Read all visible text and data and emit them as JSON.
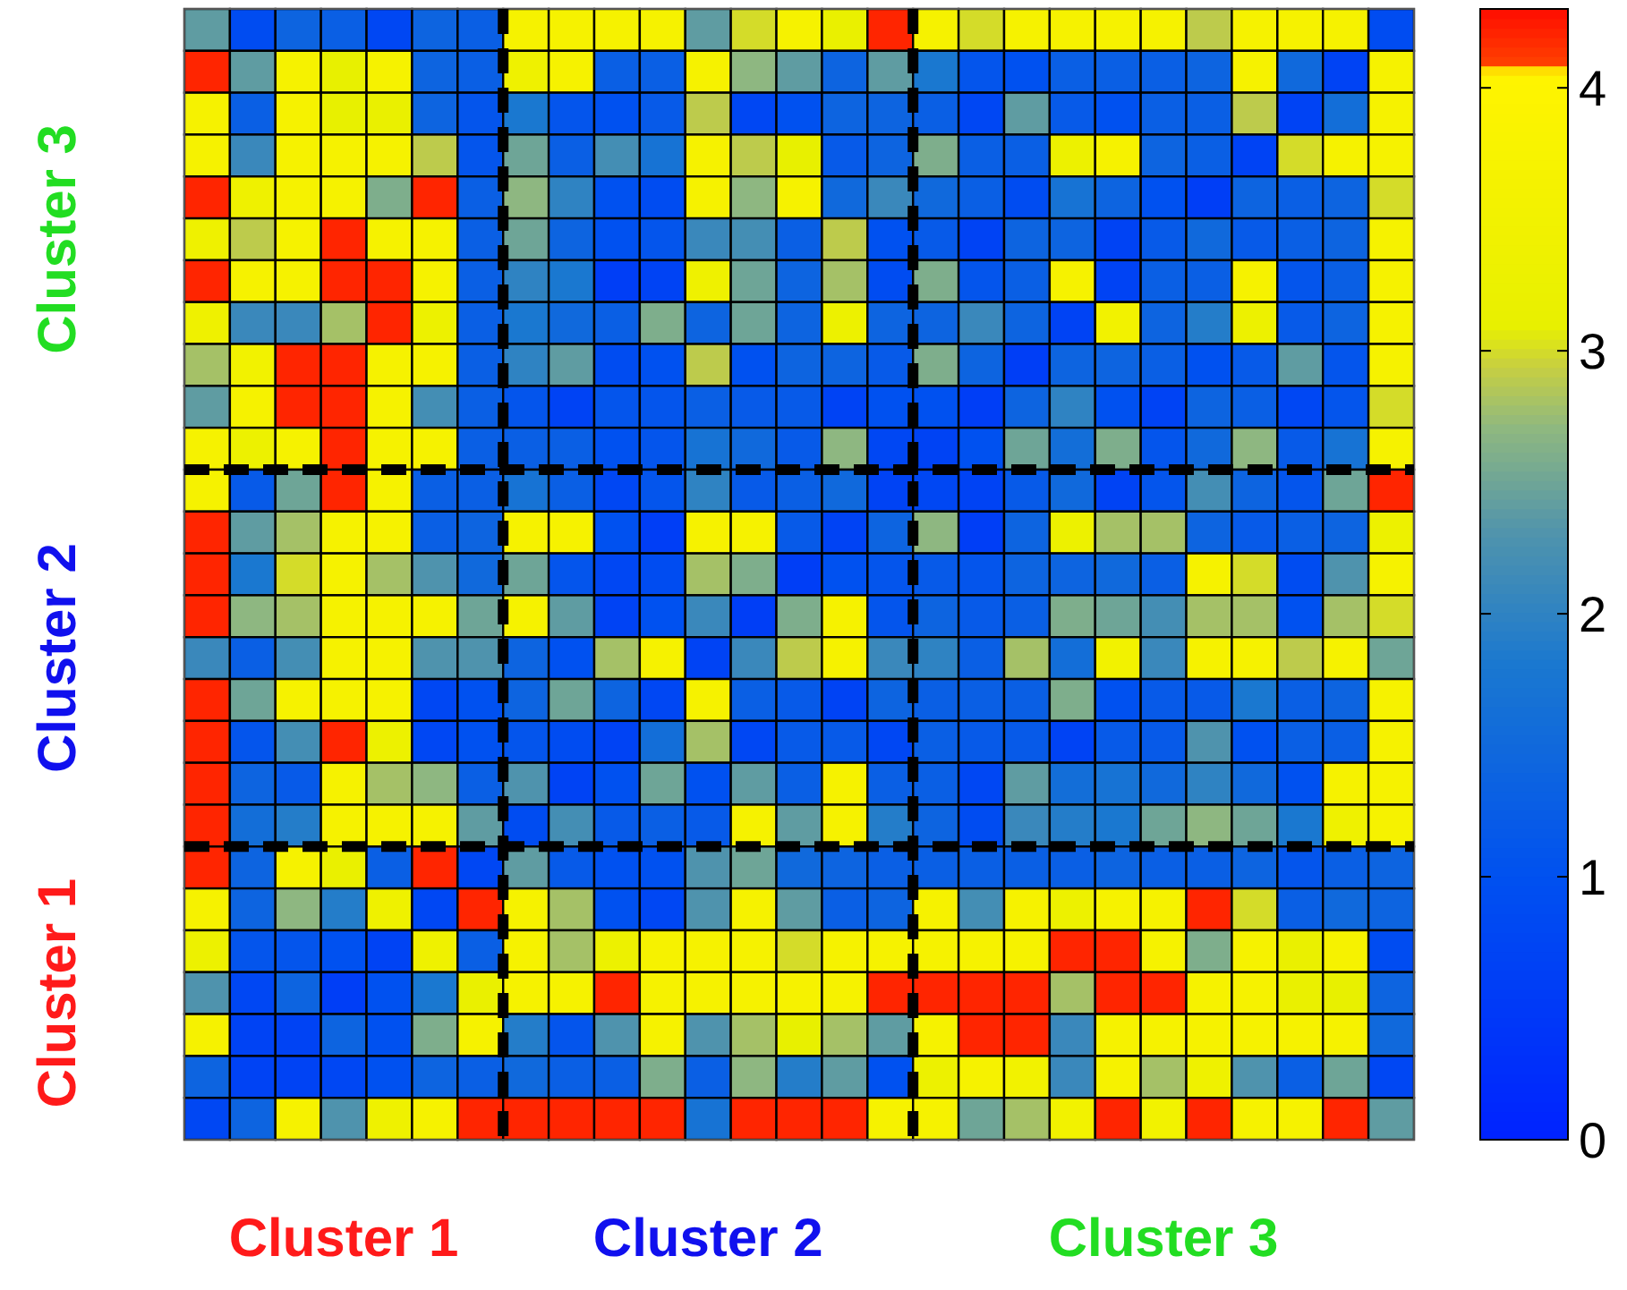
{
  "chart_data": {
    "type": "heatmap",
    "categories": [
      null,
      null,
      null,
      "Cluster 1",
      null,
      null,
      null,
      null,
      null,
      null,
      null,
      "Cluster 2",
      null,
      null,
      null,
      null,
      null,
      null,
      null,
      null,
      null,
      "Cluster 3",
      null,
      null,
      null,
      null,
      null
    ],
    "y_categories": [
      null,
      null,
      null,
      null,
      null,
      "Cluster 3",
      null,
      null,
      null,
      null,
      null,
      null,
      null,
      null,
      null,
      "Cluster 2",
      null,
      null,
      null,
      null,
      null,
      null,
      null,
      "Cluster 1",
      null,
      null,
      null
    ],
    "clim": [
      0,
      4.3
    ],
    "cticks": [
      0,
      1,
      2,
      3,
      4
    ],
    "cells": [
      [
        2.4,
        0.9,
        1.4,
        1.3,
        0.8,
        1.4,
        1.3,
        3.7,
        3.7,
        3.7,
        3.7,
        2.4,
        3.0,
        3.7,
        3.2,
        4.2,
        3.7,
        3.0,
        3.7,
        3.7,
        3.7,
        3.7,
        2.9,
        3.7,
        3.7,
        3.7,
        0.9
      ],
      [
        4.2,
        2.4,
        3.7,
        3.1,
        3.7,
        1.4,
        1.3,
        3.4,
        3.7,
        1.3,
        1.3,
        3.7,
        2.7,
        2.4,
        1.4,
        2.4,
        1.8,
        1.1,
        1.0,
        1.3,
        1.3,
        1.3,
        1.4,
        3.7,
        1.5,
        0.7,
        3.7
      ],
      [
        3.7,
        1.3,
        3.7,
        3.1,
        3.2,
        1.4,
        1.1,
        1.8,
        1.1,
        1.0,
        1.2,
        2.9,
        0.8,
        1.0,
        1.4,
        1.4,
        1.3,
        0.8,
        2.4,
        1.2,
        1.0,
        1.3,
        1.3,
        2.9,
        0.7,
        1.6,
        3.7
      ],
      [
        3.7,
        2.1,
        3.7,
        3.7,
        3.7,
        2.9,
        1.1,
        2.5,
        1.3,
        2.2,
        1.7,
        3.7,
        2.9,
        3.1,
        1.2,
        1.4,
        2.6,
        1.3,
        1.3,
        3.3,
        3.7,
        1.4,
        1.3,
        0.7,
        3.0,
        3.7,
        3.7
      ],
      [
        4.2,
        3.4,
        3.7,
        3.7,
        2.6,
        4.2,
        1.3,
        2.7,
        2.0,
        1.0,
        0.9,
        3.7,
        2.7,
        3.7,
        1.5,
        2.1,
        1.5,
        1.3,
        0.9,
        1.7,
        1.4,
        1.0,
        0.6,
        1.4,
        1.3,
        1.4,
        3.0
      ],
      [
        3.4,
        2.9,
        3.7,
        4.2,
        3.7,
        3.7,
        1.3,
        2.5,
        1.4,
        1.0,
        1.1,
        2.1,
        2.2,
        1.3,
        2.9,
        1.0,
        1.2,
        0.7,
        1.4,
        1.4,
        0.7,
        1.2,
        1.5,
        1.2,
        1.3,
        1.4,
        3.7
      ],
      [
        4.2,
        3.7,
        3.7,
        4.2,
        4.2,
        3.7,
        1.3,
        2.0,
        1.8,
        0.6,
        0.7,
        3.4,
        2.5,
        1.4,
        2.8,
        0.9,
        2.6,
        1.1,
        1.3,
        3.7,
        0.7,
        1.3,
        1.3,
        3.7,
        1.1,
        1.3,
        3.7
      ],
      [
        3.4,
        2.1,
        2.1,
        2.8,
        4.2,
        3.3,
        1.3,
        1.8,
        1.5,
        1.3,
        2.6,
        1.4,
        2.5,
        1.4,
        3.3,
        1.4,
        1.4,
        2.1,
        1.4,
        0.7,
        3.5,
        1.4,
        1.9,
        3.3,
        1.2,
        1.4,
        3.7
      ],
      [
        2.8,
        3.5,
        4.2,
        4.2,
        3.7,
        3.7,
        1.3,
        2.0,
        2.4,
        0.9,
        1.0,
        2.9,
        1.0,
        1.4,
        1.4,
        1.2,
        2.6,
        1.4,
        0.6,
        1.4,
        1.4,
        1.3,
        1.0,
        1.2,
        2.4,
        1.1,
        3.7
      ],
      [
        2.4,
        3.7,
        4.2,
        4.2,
        3.7,
        2.2,
        1.3,
        1.1,
        0.7,
        1.1,
        1.1,
        1.3,
        1.2,
        1.2,
        0.7,
        1.0,
        1.0,
        0.6,
        1.4,
        2.0,
        1.0,
        0.7,
        1.4,
        1.3,
        0.8,
        1.1,
        3.0
      ],
      [
        3.7,
        3.3,
        3.7,
        4.2,
        3.7,
        3.7,
        1.3,
        1.3,
        1.3,
        1.0,
        1.1,
        1.7,
        1.5,
        1.2,
        2.7,
        0.8,
        0.7,
        1.0,
        2.5,
        1.6,
        2.6,
        1.1,
        1.5,
        2.7,
        1.2,
        1.7,
        3.7
      ],
      [
        3.7,
        1.2,
        2.5,
        4.2,
        3.7,
        1.3,
        1.3,
        1.7,
        1.3,
        0.8,
        1.1,
        2.0,
        1.2,
        1.3,
        1.5,
        0.7,
        0.8,
        0.7,
        1.2,
        1.5,
        0.7,
        1.1,
        2.2,
        1.4,
        1.1,
        2.5,
        4.2
      ],
      [
        4.2,
        2.4,
        2.8,
        3.7,
        3.7,
        1.3,
        1.4,
        3.7,
        3.7,
        1.0,
        0.6,
        3.7,
        3.7,
        1.2,
        0.7,
        1.4,
        2.7,
        0.6,
        1.4,
        3.3,
        2.8,
        2.8,
        1.4,
        1.2,
        1.3,
        1.4,
        3.3
      ],
      [
        4.2,
        1.8,
        3.0,
        3.7,
        2.8,
        2.3,
        1.5,
        2.5,
        1.1,
        0.8,
        0.9,
        2.8,
        2.6,
        0.6,
        1.0,
        1.1,
        1.2,
        1.1,
        1.4,
        1.4,
        1.5,
        1.3,
        3.7,
        3.0,
        0.9,
        2.3,
        3.7
      ],
      [
        4.2,
        2.7,
        2.8,
        3.7,
        3.7,
        3.7,
        2.5,
        3.7,
        2.4,
        0.7,
        1.0,
        2.1,
        0.6,
        2.6,
        3.7,
        1.1,
        1.4,
        1.2,
        1.3,
        2.6,
        2.5,
        2.2,
        2.8,
        2.8,
        1.0,
        2.8,
        3.0
      ],
      [
        2.1,
        1.3,
        2.2,
        3.7,
        3.7,
        2.3,
        2.3,
        1.4,
        1.0,
        2.8,
        3.7,
        0.7,
        2.1,
        2.9,
        3.7,
        2.1,
        2.0,
        1.3,
        2.8,
        1.6,
        3.5,
        2.1,
        3.7,
        3.7,
        2.9,
        3.7,
        2.5
      ],
      [
        4.2,
        2.5,
        3.7,
        3.7,
        3.7,
        0.8,
        1.0,
        1.4,
        2.5,
        1.4,
        0.8,
        3.7,
        1.3,
        1.2,
        0.7,
        1.4,
        1.3,
        1.3,
        1.3,
        2.6,
        1.0,
        1.2,
        1.2,
        1.8,
        1.3,
        1.4,
        3.7
      ],
      [
        4.2,
        1.1,
        2.2,
        4.2,
        3.3,
        0.8,
        1.0,
        1.1,
        0.9,
        0.7,
        1.6,
        2.8,
        0.8,
        1.2,
        1.2,
        0.8,
        1.3,
        1.2,
        1.2,
        0.7,
        1.2,
        1.2,
        2.3,
        1.0,
        1.3,
        1.3,
        3.7
      ],
      [
        4.2,
        1.4,
        1.2,
        3.7,
        2.8,
        2.7,
        1.3,
        2.3,
        0.7,
        1.0,
        2.5,
        1.0,
        2.4,
        1.3,
        3.7,
        1.3,
        1.3,
        0.8,
        2.4,
        1.6,
        1.7,
        1.5,
        2.0,
        1.5,
        1.0,
        3.7,
        3.7
      ],
      [
        4.2,
        1.6,
        1.9,
        3.7,
        3.7,
        3.7,
        2.4,
        0.9,
        2.2,
        1.2,
        1.3,
        1.2,
        3.7,
        2.4,
        3.7,
        1.9,
        1.4,
        0.9,
        2.1,
        1.9,
        1.8,
        2.5,
        2.7,
        2.5,
        1.8,
        3.4,
        3.7
      ],
      [
        4.2,
        1.4,
        3.7,
        3.2,
        1.3,
        4.2,
        0.8,
        2.4,
        1.2,
        1.0,
        1.0,
        2.3,
        2.5,
        1.5,
        1.4,
        1.3,
        1.3,
        1.3,
        1.3,
        1.3,
        1.4,
        1.3,
        1.3,
        1.4,
        1.1,
        1.3,
        1.4
      ],
      [
        3.7,
        1.4,
        2.7,
        1.9,
        3.4,
        0.8,
        4.2,
        3.7,
        2.8,
        1.0,
        0.8,
        2.3,
        3.7,
        2.4,
        1.3,
        1.4,
        3.7,
        2.2,
        3.7,
        3.3,
        3.7,
        3.7,
        4.2,
        3.0,
        1.3,
        1.5,
        1.4
      ],
      [
        3.3,
        1.1,
        1.1,
        1.0,
        0.7,
        3.4,
        1.3,
        3.7,
        2.8,
        3.3,
        3.7,
        3.7,
        3.7,
        3.0,
        3.7,
        3.7,
        3.7,
        3.7,
        3.7,
        4.2,
        4.2,
        3.7,
        2.6,
        3.7,
        3.2,
        3.7,
        0.9
      ],
      [
        2.3,
        0.8,
        1.4,
        0.6,
        1.0,
        1.8,
        3.2,
        3.7,
        3.7,
        4.2,
        3.7,
        3.7,
        3.7,
        3.7,
        3.7,
        4.2,
        4.2,
        4.2,
        4.2,
        2.8,
        4.2,
        4.2,
        3.7,
        3.7,
        3.2,
        3.1,
        1.4
      ],
      [
        3.7,
        0.7,
        0.7,
        1.4,
        1.0,
        2.6,
        3.7,
        1.9,
        1.1,
        2.3,
        3.7,
        2.3,
        2.8,
        3.1,
        2.8,
        2.4,
        3.7,
        4.2,
        4.2,
        2.1,
        3.7,
        3.7,
        3.7,
        3.7,
        3.7,
        3.7,
        1.5
      ],
      [
        1.4,
        0.7,
        0.7,
        0.8,
        1.0,
        1.4,
        1.3,
        1.5,
        1.3,
        1.3,
        2.6,
        1.3,
        2.7,
        1.9,
        2.4,
        1.0,
        3.3,
        3.7,
        3.5,
        2.1,
        3.7,
        2.8,
        3.4,
        2.3,
        1.3,
        2.5,
        0.8
      ],
      [
        0.8,
        1.4,
        3.7,
        2.3,
        3.4,
        3.7,
        4.2,
        4.2,
        4.2,
        4.2,
        4.2,
        1.7,
        4.2,
        4.2,
        4.2,
        3.7,
        3.7,
        2.5,
        2.8,
        3.5,
        4.2,
        3.5,
        4.2,
        3.7,
        3.7,
        4.2,
        2.4
      ]
    ]
  }
}
